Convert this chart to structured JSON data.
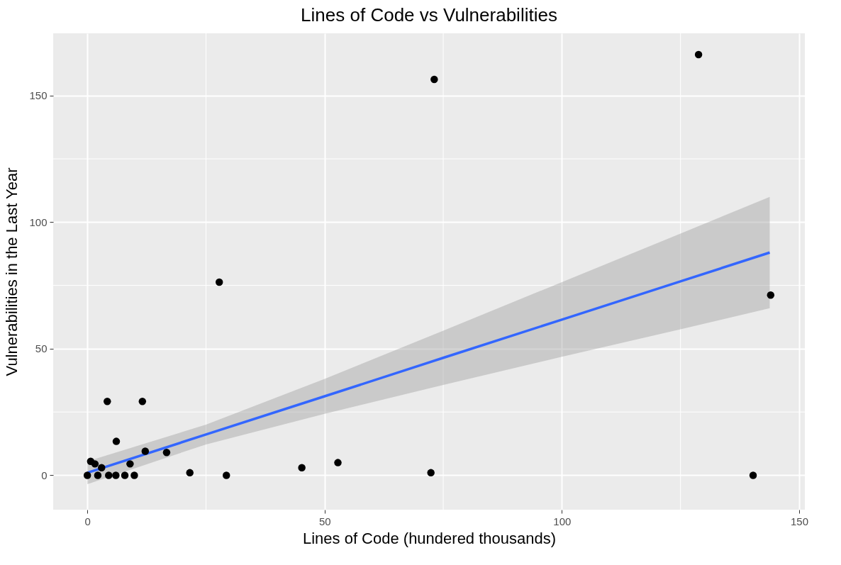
{
  "chart_data": {
    "type": "scatter",
    "title": "Lines of Code vs Vulnerabilities",
    "xlabel": "Lines of Code (hundered thousands)",
    "ylabel": "Vulnerabilities in the Last Year",
    "xlim": [
      -7.2,
      151.2
    ],
    "ylim": [
      -13.6,
      174.6
    ],
    "xticks": [
      0,
      {
        "value": 25,
        "label": null
      },
      50,
      {
        "value": 75,
        "label": null
      },
      100,
      {
        "value": 125,
        "label": null
      },
      150
    ],
    "yticks": [
      0,
      {
        "value": 25,
        "label": null
      },
      50,
      {
        "value": 75,
        "label": null
      },
      100,
      {
        "value": 125,
        "label": null
      },
      150
    ],
    "grid": true,
    "marker": "circle",
    "series": [
      {
        "color": "#000000",
        "x": [
          73.1,
          128.8,
          27.8,
          144.0,
          4.2,
          11.6,
          6.1,
          12.2,
          16.7,
          21.6,
          29.3,
          45.2,
          52.8,
          72.4,
          140.3,
          0,
          0.7,
          1.6,
          3,
          5.4,
          9,
          7.9,
          9.9,
          4.5,
          6,
          2.2
        ],
        "values": [
          156.4,
          166.2,
          76.3,
          71.2,
          29.2,
          29.2,
          13.4,
          9.5,
          9,
          1,
          0,
          3,
          5,
          1,
          0,
          0,
          5.5,
          4.5,
          3,
          null,
          4.5,
          0,
          0,
          0,
          0,
          0
        ]
      },
      {
        "type": "line",
        "marker": "none",
        "color": "#3366ff",
        "x": [
          0,
          25,
          50,
          75,
          100,
          125,
          143.8
        ],
        "values": [
          1,
          16.1,
          31.2,
          46.4,
          61.5,
          76.6,
          88
        ],
        "lower": [
          -3.5,
          12.2,
          24.3,
          35.7,
          46.8,
          57.7,
          66
        ],
        "upper": [
          5.5,
          20,
          38.1,
          57.1,
          76.3,
          95.5,
          110
        ]
      }
    ]
  }
}
